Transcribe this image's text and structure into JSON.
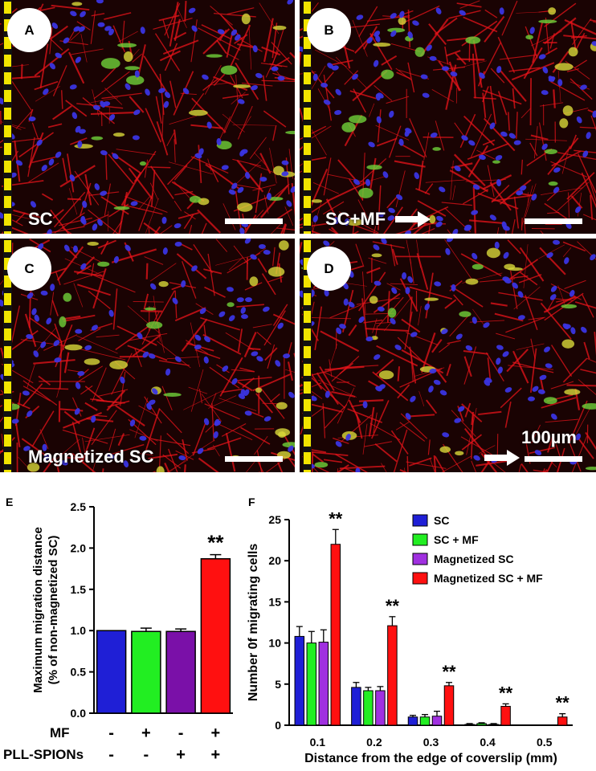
{
  "panels": [
    {
      "letter": "A",
      "label": "SC",
      "arrow": false
    },
    {
      "letter": "B",
      "label": "SC+MF",
      "arrow": true
    },
    {
      "letter": "C",
      "label": "Magnetized SC",
      "arrow": false
    },
    {
      "letter": "D",
      "label": "",
      "arrow": true,
      "scale_text": "100µm"
    }
  ],
  "colors": {
    "SC": "#1f1fd6",
    "SC + MF": "#22ee22",
    "Magnetized SC": "#a030e0",
    "Magnetized SC + MF": "#ff1010",
    "E_third": "#7a10a8",
    "actin": "#e8141a",
    "nuclei": "#3a34e0",
    "spions": "#6fd23a",
    "edge_stripe": "#f2e400"
  },
  "chart_data": [
    {
      "panel": "E",
      "type": "bar",
      "ylabel": "Maximum migration distance\n(% of non-magnetized SC)",
      "ylim": [
        0,
        2.5
      ],
      "yticks": [
        "0.0",
        "0.5",
        "1.0",
        "1.5",
        "2.0",
        "2.5"
      ],
      "values": [
        1.0,
        0.99,
        0.99,
        1.87
      ],
      "errors": [
        0.0,
        0.04,
        0.03,
        0.05
      ],
      "significance": [
        "",
        "",
        "",
        "**"
      ],
      "row_labels": [
        "MF",
        "PLL-SPIONs"
      ],
      "rows": [
        [
          "-",
          "+",
          "-",
          "+"
        ],
        [
          "-",
          "-",
          "+",
          "+"
        ]
      ]
    },
    {
      "panel": "F",
      "type": "bar",
      "xlabel": "Distance from the edge of coverslip (mm)",
      "ylabel": "Number 0f migrating cells",
      "ylim": [
        0,
        25
      ],
      "yticks": [
        "0",
        "5",
        "10",
        "15",
        "20",
        "25"
      ],
      "categories": [
        "0.1",
        "0.2",
        "0.3",
        "0.4",
        "0.5"
      ],
      "series": [
        {
          "name": "SC",
          "values": [
            10.8,
            4.6,
            1.0,
            0.1,
            0.0
          ],
          "errors": [
            1.2,
            0.6,
            0.2,
            0.1,
            0.0
          ]
        },
        {
          "name": "SC + MF",
          "values": [
            10.0,
            4.2,
            1.0,
            0.2,
            0.0
          ],
          "errors": [
            1.4,
            0.4,
            0.3,
            0.1,
            0.0
          ]
        },
        {
          "name": "Magnetized SC",
          "values": [
            10.1,
            4.2,
            1.1,
            0.1,
            0.0
          ],
          "errors": [
            1.5,
            0.5,
            0.6,
            0.1,
            0.0
          ]
        },
        {
          "name": "Magnetized SC + MF",
          "values": [
            22.0,
            12.1,
            4.8,
            2.3,
            1.0
          ],
          "errors": [
            1.8,
            1.1,
            0.4,
            0.3,
            0.4
          ]
        }
      ],
      "significance": [
        "**",
        "**",
        "**",
        "**",
        "**"
      ],
      "legend_position": "top-right"
    }
  ]
}
